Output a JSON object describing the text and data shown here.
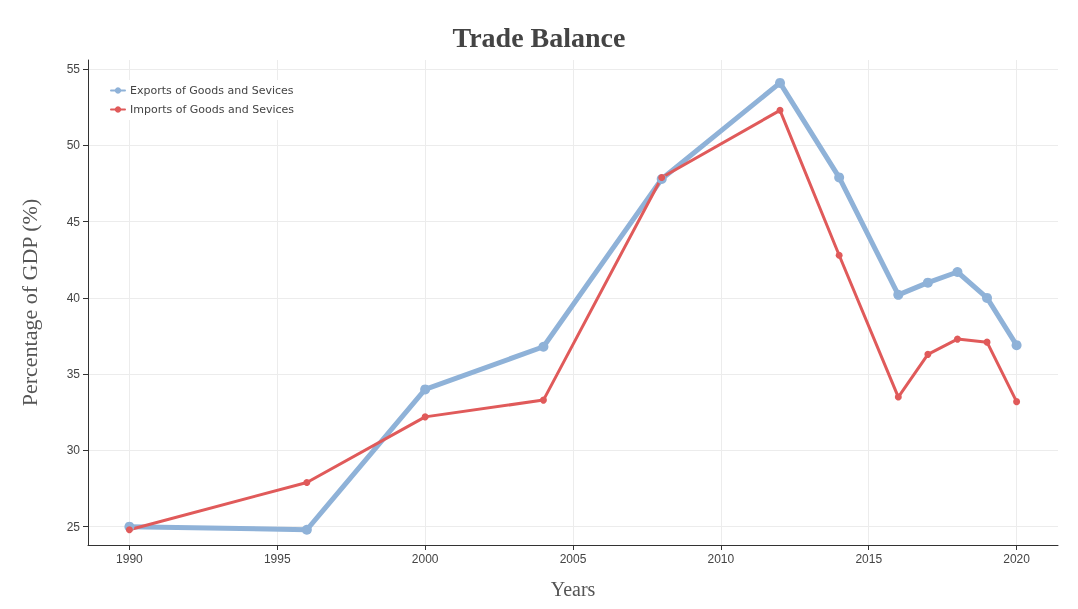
{
  "chart_data": {
    "type": "line",
    "title": "Trade Balance",
    "xlabel": "Years",
    "ylabel": "Percentage of GDP (%)",
    "x": [
      1990,
      1996,
      2000,
      2004,
      2008,
      2012,
      2014,
      2016,
      2017,
      2018,
      2019,
      2020
    ],
    "series": [
      {
        "name": "Exports of Goods and Sevices",
        "color": "#8fb2d8",
        "values": [
          25.0,
          24.8,
          34.0,
          36.8,
          47.8,
          54.1,
          47.9,
          40.2,
          41.0,
          41.7,
          40.0,
          36.9
        ]
      },
      {
        "name": "Imports of Goods and Sevices",
        "color": "#e05a5a",
        "values": [
          24.8,
          27.9,
          32.2,
          33.3,
          47.9,
          52.3,
          42.8,
          33.5,
          36.3,
          37.3,
          37.1,
          33.2
        ]
      }
    ],
    "xlim": [
      1988.6,
      2021.4
    ],
    "xticks": [
      1990,
      1995,
      2000,
      2005,
      2010,
      2015,
      2020
    ],
    "ylim": [
      23.8,
      55.6
    ],
    "yticks": [
      25,
      30,
      35,
      40,
      45,
      50,
      55
    ],
    "grid": true,
    "legend": "top left",
    "marker": "circle",
    "line_style": "solid"
  }
}
